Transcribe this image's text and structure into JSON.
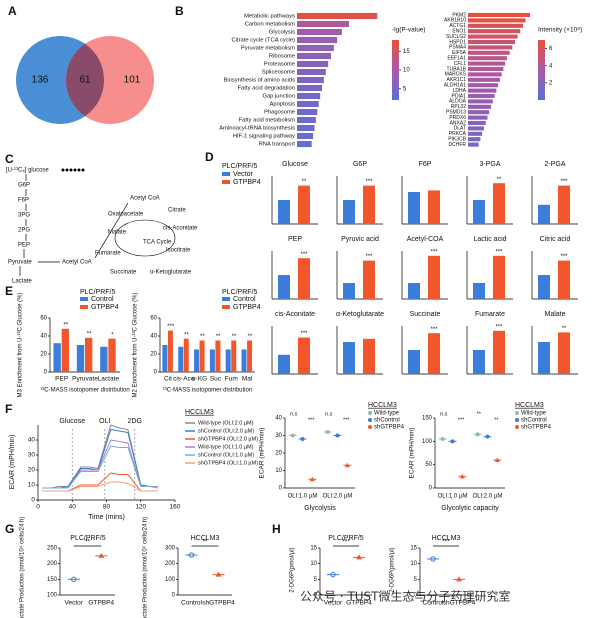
{
  "A": {
    "label": "A",
    "left": 136,
    "both": 61,
    "right": 101
  },
  "B": {
    "label": "B",
    "pathways": {
      "terms": [
        "Metabolic pathways",
        "Carbon metabolism",
        "Glycolysis",
        "Citrate cycle (TCA cycle)",
        "Pyruvate metabolism",
        "Ribosome",
        "Proteasome",
        "Spliceosome",
        "Biosynthesis of amino acids",
        "Fatty acid degradation",
        "Gap junction",
        "Apoptosis",
        "Phagosome",
        "Fatty acid metabolism",
        "Aminoacyl-tRNA biosynthesis",
        "HIF-1 signaling pathway",
        "RNA transport"
      ],
      "values": [
        17,
        11,
        9.5,
        8.5,
        7.8,
        7.2,
        6.6,
        6.1,
        5.7,
        5.3,
        4.9,
        4.6,
        4.3,
        4,
        3.7,
        3.4,
        3.1
      ],
      "colorbar_title": "-lg(P-value)",
      "clim": [
        2,
        18
      ],
      "cticks": [
        5,
        10,
        15
      ]
    },
    "proteins": {
      "names": [
        "PKM2",
        "AKR1B10",
        "ACTG1",
        "ENO1",
        "SUCLG2",
        "HSPD1",
        "PSMA4",
        "EIF5A",
        "EEF1A1",
        "CFL1",
        "TUBA1B",
        "MARCKS",
        "AKR1C1",
        "ALDH1A1",
        "LDHA",
        "PDIA1",
        "ALDOA",
        "RPL32",
        "PSMD13",
        "PRDX6",
        "ANXA2",
        "DLAT",
        "PRKCA",
        "PIK3CB",
        "DCHFR"
      ],
      "values": [
        7,
        6.5,
        6.2,
        5.9,
        5.6,
        5.3,
        5,
        4.7,
        4.4,
        4.2,
        4,
        3.8,
        3.6,
        3.4,
        3.2,
        3,
        2.8,
        2.6,
        2.4,
        2.2,
        2,
        1.8,
        1.6,
        1.4,
        1.2
      ],
      "colorbar_title": "Intensity (×10⁸)",
      "clim": [
        0,
        7
      ],
      "cticks": [
        2,
        4,
        6
      ]
    }
  },
  "C": {
    "label": "C",
    "nodes": [
      "[U-¹³C₆] glucose",
      "G6P",
      "F6P",
      "3PG",
      "2PG",
      "PEP",
      "Pyruvate",
      "Lactate",
      "Acetyl CoA",
      "Acetyl CoA",
      "Oxaloacetate",
      "Citrate",
      "cis-Aconitate",
      "Malate",
      "TCA Cycle",
      "Isocitrate",
      "Fumarate",
      "α-Ketoglutarate",
      "Succinate"
    ]
  },
  "D": {
    "label": "D",
    "title": "PLC/PRF/5",
    "series": [
      {
        "name": "Vector",
        "color": "#3b7dd8"
      },
      {
        "name": "GTPBP4",
        "color": "#f2572b"
      }
    ],
    "charts": [
      {
        "title": "Glucose",
        "values": [
          1.0,
          1.6
        ],
        "ylim": [
          0,
          2
        ],
        "sig": "**"
      },
      {
        "title": "G6P",
        "values": [
          1.0,
          1.6
        ],
        "ylim": [
          0,
          2
        ],
        "sig": "***"
      },
      {
        "title": "F6P",
        "values": [
          1.0,
          1.05
        ],
        "ylim": [
          0,
          1.5
        ]
      },
      {
        "title": "3-PGA",
        "values": [
          1.0,
          1.7
        ],
        "ylim": [
          0,
          2
        ],
        "sig": "**"
      },
      {
        "title": "2-PGA",
        "values": [
          1.0,
          2.0
        ],
        "ylim": [
          0,
          2.5
        ],
        "sig": "***"
      },
      {
        "title": "PEP",
        "values": [
          1.0,
          1.7
        ],
        "ylim": [
          0,
          2
        ],
        "sig": "***"
      },
      {
        "title": "Pyruvic acid",
        "values": [
          1.0,
          2.4
        ],
        "ylim": [
          0,
          3
        ],
        "sig": "***"
      },
      {
        "title": "Acetyl-COA",
        "values": [
          1.0,
          2.7
        ],
        "ylim": [
          0,
          3
        ],
        "sig": "***"
      },
      {
        "title": "Lactic acid",
        "values": [
          1.0,
          2.7
        ],
        "ylim": [
          0,
          3
        ],
        "sig": "***"
      },
      {
        "title": "Citric acid",
        "values": [
          1.0,
          1.6
        ],
        "ylim": [
          0,
          2
        ],
        "sig": "***"
      },
      {
        "title": "cis-Aconitate",
        "values": [
          1.0,
          1.9
        ],
        "ylim": [
          0,
          2.5
        ],
        "sig": "***"
      },
      {
        "title": "α-Ketoglutarate",
        "values": [
          1.0,
          1.1
        ],
        "ylim": [
          0,
          1.5
        ]
      },
      {
        "title": "Succinate",
        "values": [
          1.0,
          1.7
        ],
        "ylim": [
          0,
          2
        ],
        "sig": "***"
      },
      {
        "title": "Fumarate",
        "values": [
          1.0,
          1.8
        ],
        "ylim": [
          0,
          2
        ],
        "sig": "***"
      },
      {
        "title": "Malate",
        "values": [
          1.0,
          1.3
        ],
        "ylim": [
          0,
          1.5
        ],
        "sig": "**"
      }
    ]
  },
  "E": {
    "label": "E",
    "charts": [
      {
        "title": "PLC/PRF/5",
        "categories": [
          "PEP",
          "Pyruvate",
          "Lactate"
        ],
        "series": [
          {
            "name": "Control",
            "color": "#3b7dd8",
            "values": [
              32,
              30,
              28
            ]
          },
          {
            "name": "GTPBP4",
            "color": "#f2572b",
            "values": [
              48,
              38,
              37
            ]
          }
        ],
        "ylabel": "M3 Enrichment from U-¹³C Glucose (%)",
        "xlabel": "¹³C-MASS isotopomer distribution",
        "ylim": [
          0,
          60
        ],
        "yticks": [
          0,
          20,
          40,
          60
        ],
        "sig": [
          "**",
          "**",
          "*"
        ]
      },
      {
        "title": "PLC/PRF/5",
        "categories": [
          "Cit",
          "cis-Aco",
          "α-KG",
          "Suc",
          "Fum",
          "Mal"
        ],
        "series": [
          {
            "name": "Control",
            "color": "#3b7dd8",
            "values": [
              30,
              28,
              25,
              25,
              25,
              25
            ]
          },
          {
            "name": "GTPBP4",
            "color": "#f2572b",
            "values": [
              46,
              37,
              35,
              35,
              35,
              35
            ]
          }
        ],
        "ylabel": "M2 Enrichment from U-¹³C Glucose (%)",
        "xlabel": "¹³C-MASS isotopomer distribution",
        "ylim": [
          0,
          60
        ],
        "yticks": [
          0,
          20,
          40,
          60
        ],
        "sig": [
          "***",
          "**",
          "**",
          "**",
          "**",
          "**"
        ]
      }
    ]
  },
  "F": {
    "label": "F",
    "line": {
      "title": "HCCLM3",
      "xlabel": "Time (mins)",
      "ylabel": "ECAR (mPH/min)",
      "annotations": [
        {
          "text": "Glucose",
          "x": 40
        },
        {
          "text": "OLI",
          "x": 78
        },
        {
          "text": "2DG",
          "x": 113
        }
      ],
      "x": [
        5,
        15,
        25,
        35,
        50,
        60,
        70,
        85,
        95,
        105,
        120,
        130,
        140
      ],
      "series": [
        {
          "name": "Wild-type (OLI:2.0 µM)",
          "color": "#8c8c8c",
          "values": [
            8,
            8,
            9,
            9,
            22,
            22,
            21,
            50,
            48,
            47,
            10,
            9,
            9
          ]
        },
        {
          "name": "shControl (OLI:2.0 µM)",
          "color": "#3b7dd8",
          "values": [
            8,
            8,
            8,
            9,
            21,
            21,
            20,
            47,
            46,
            45,
            10,
            9,
            9
          ]
        },
        {
          "name": "shGTPBP4 (OLI:2.0 µM)",
          "color": "#f2572b",
          "values": [
            6,
            6,
            6,
            6,
            10,
            10,
            10,
            18,
            17,
            17,
            6,
            6,
            6
          ]
        },
        {
          "name": "Wild-type (OLI:1.0 µM)",
          "color": "#b57bc4",
          "values": [
            8,
            8,
            8,
            8,
            20,
            20,
            20,
            40,
            39,
            38,
            9,
            9,
            9
          ]
        },
        {
          "name": "shControl (OLI:1.0 µM)",
          "color": "#6ab0e0",
          "values": [
            8,
            8,
            8,
            8,
            19,
            19,
            19,
            36,
            35,
            35,
            9,
            9,
            8
          ]
        },
        {
          "name": "shGTPBP4 (OLI:1.0 µM)",
          "color": "#f4a07a",
          "values": [
            6,
            6,
            6,
            6,
            9,
            9,
            9,
            12,
            12,
            11,
            6,
            6,
            6
          ]
        }
      ],
      "xlim": [
        0,
        160
      ],
      "xticks": [
        0,
        40,
        80,
        120,
        160
      ],
      "ylim": [
        0,
        50
      ],
      "yticks": [
        0,
        10,
        20,
        30,
        40
      ]
    },
    "glycolysis": {
      "title": "HCCLM3",
      "ylabel": "ECAR (mPH/min)",
      "xlabel": "Glycolysis",
      "categories": [
        "OLI:1.0 µM",
        "OLI:2.0 µM"
      ],
      "series": [
        {
          "name": "Wild-type",
          "color": "#8fbf9f",
          "values": [
            30,
            32
          ]
        },
        {
          "name": "shControl",
          "color": "#3b7dd8",
          "values": [
            28,
            30
          ]
        },
        {
          "name": "shGTPBP4",
          "color": "#f2572b",
          "values": [
            5,
            13
          ]
        }
      ],
      "ylim": [
        0,
        40
      ],
      "yticks": [
        0,
        10,
        20,
        30,
        40
      ],
      "sig": [
        "n.s",
        "***",
        "n.s",
        "***"
      ]
    },
    "capacity": {
      "title": "HCCLM3",
      "ylabel": "ECAR (mPH/min)",
      "xlabel": "Glycolytic capacity",
      "categories": [
        "OLI:1.0 µM",
        "OLI:2.0 µM"
      ],
      "series": [
        {
          "name": "Wild-type",
          "color": "#8fbf9f",
          "values": [
            105,
            115
          ]
        },
        {
          "name": "shControl",
          "color": "#3b7dd8",
          "values": [
            100,
            110
          ]
        },
        {
          "name": "shGTPBP4",
          "color": "#f2572b",
          "values": [
            25,
            60
          ]
        }
      ],
      "ylim": [
        0,
        150
      ],
      "yticks": [
        0,
        50,
        100,
        150
      ],
      "sig": [
        "n.s",
        "***",
        "**",
        "**"
      ]
    }
  },
  "G": {
    "label": "G",
    "charts": [
      {
        "title": "PLC/PRF/5",
        "ylabel": "Lactate Production (nmol/10⁴ cells/24 h)",
        "categories": [
          "Vector",
          "GTPBP4"
        ],
        "colors": [
          "#3b7dd8",
          "#f2572b"
        ],
        "values": [
          150,
          225
        ],
        "ylim": [
          100,
          250
        ],
        "yticks": [
          100,
          150,
          200,
          250
        ],
        "sig": "**"
      },
      {
        "title": "HCCLM3",
        "ylabel": "Lactate Production (nmol/10⁴ cells/24 h)",
        "categories": [
          "Control",
          "shGTPBP4"
        ],
        "colors": [
          "#3b7dd8",
          "#f2572b"
        ],
        "values": [
          255,
          130
        ],
        "ylim": [
          0,
          300
        ],
        "yticks": [
          0,
          100,
          200,
          300
        ],
        "sig": "**"
      }
    ]
  },
  "H": {
    "label": "H",
    "charts": [
      {
        "title": "PLC/PRF/5",
        "ylabel": "2-DG6P(pmol/µl)",
        "categories": [
          "Vector",
          "GTPBP4"
        ],
        "colors": [
          "#3b7dd8",
          "#f2572b"
        ],
        "values": [
          6.5,
          12
        ],
        "ylim": [
          0,
          15
        ],
        "yticks": [
          0,
          5,
          10,
          15
        ],
        "sig": "***"
      },
      {
        "title": "HCCLM3",
        "ylabel": "2-DG6P(pmol/µl)",
        "categories": [
          "Control",
          "shGTPBP4"
        ],
        "colors": [
          "#3b7dd8",
          "#f2572b"
        ],
        "values": [
          11.5,
          5
        ],
        "ylim": [
          0,
          15
        ],
        "yticks": [
          0,
          5,
          10,
          15
        ],
        "sig": "***"
      }
    ]
  },
  "watermark": "公众号 · TUST微生态与分子药理研究室"
}
